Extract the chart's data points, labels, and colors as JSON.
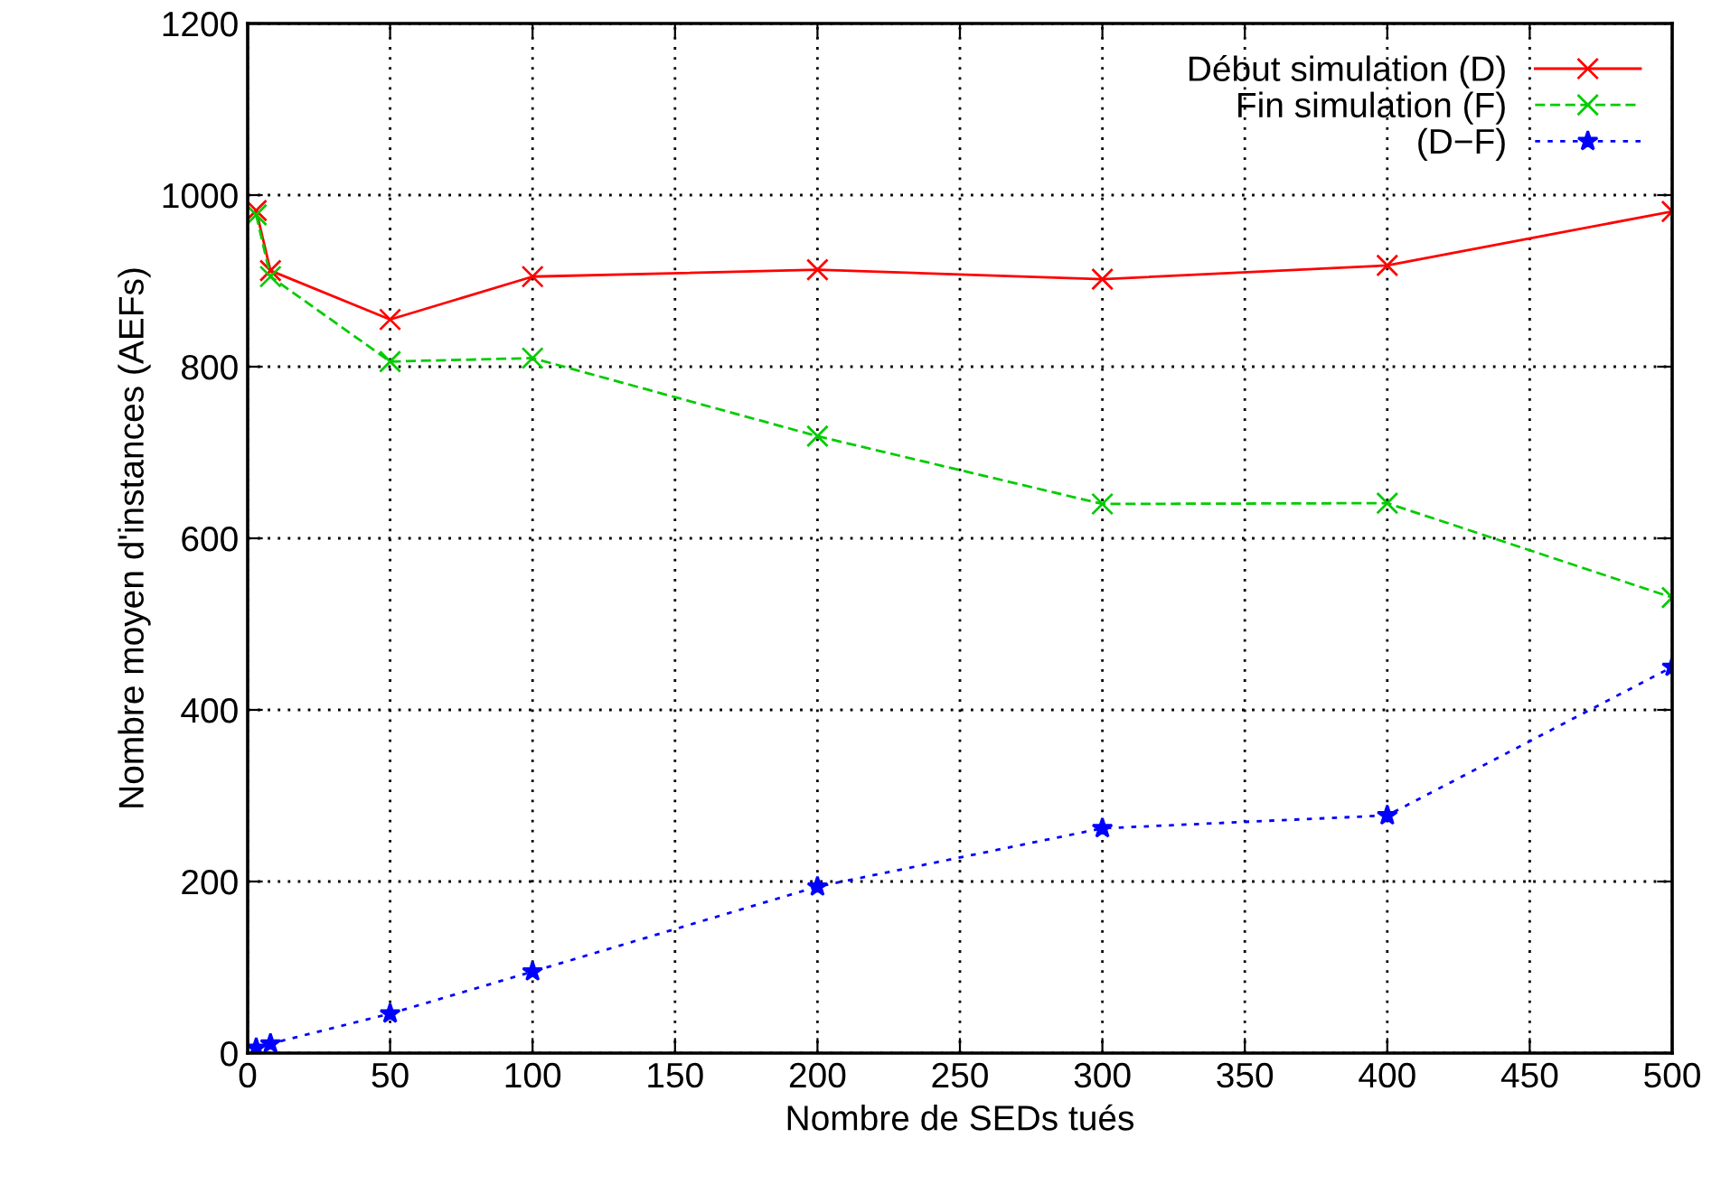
{
  "chart_data": {
    "type": "line",
    "xlabel": "Nombre de SEDs tués",
    "ylabel": "Nombre moyen d'instances (AEFs)",
    "x": [
      3,
      8,
      50,
      100,
      200,
      300,
      400,
      500
    ],
    "series": [
      {
        "name": "Début simulation (D)",
        "color": "#ff0000",
        "values": [
          982,
          912,
          855,
          905,
          913,
          902,
          918,
          981
        ],
        "marker": "cross",
        "line_style": "solid"
      },
      {
        "name": "Fin simulation (F)",
        "color": "#00cc00",
        "values": [
          977,
          905,
          806,
          810,
          719,
          640,
          641,
          531
        ],
        "marker": "cross",
        "line_style": "dashed"
      },
      {
        "name": "(D−F)",
        "color": "#0000ff",
        "values": [
          6,
          11,
          46,
          95,
          194,
          262,
          277,
          450
        ],
        "marker": "star",
        "line_style": "dotted"
      }
    ],
    "xlim": [
      0,
      500
    ],
    "xticks": [
      0,
      50,
      100,
      150,
      200,
      250,
      300,
      350,
      400,
      450,
      500
    ],
    "ylim": [
      0,
      1200
    ],
    "yticks": [
      0,
      200,
      400,
      600,
      800,
      1000,
      1200
    ],
    "grid": true,
    "legend": "top right"
  }
}
